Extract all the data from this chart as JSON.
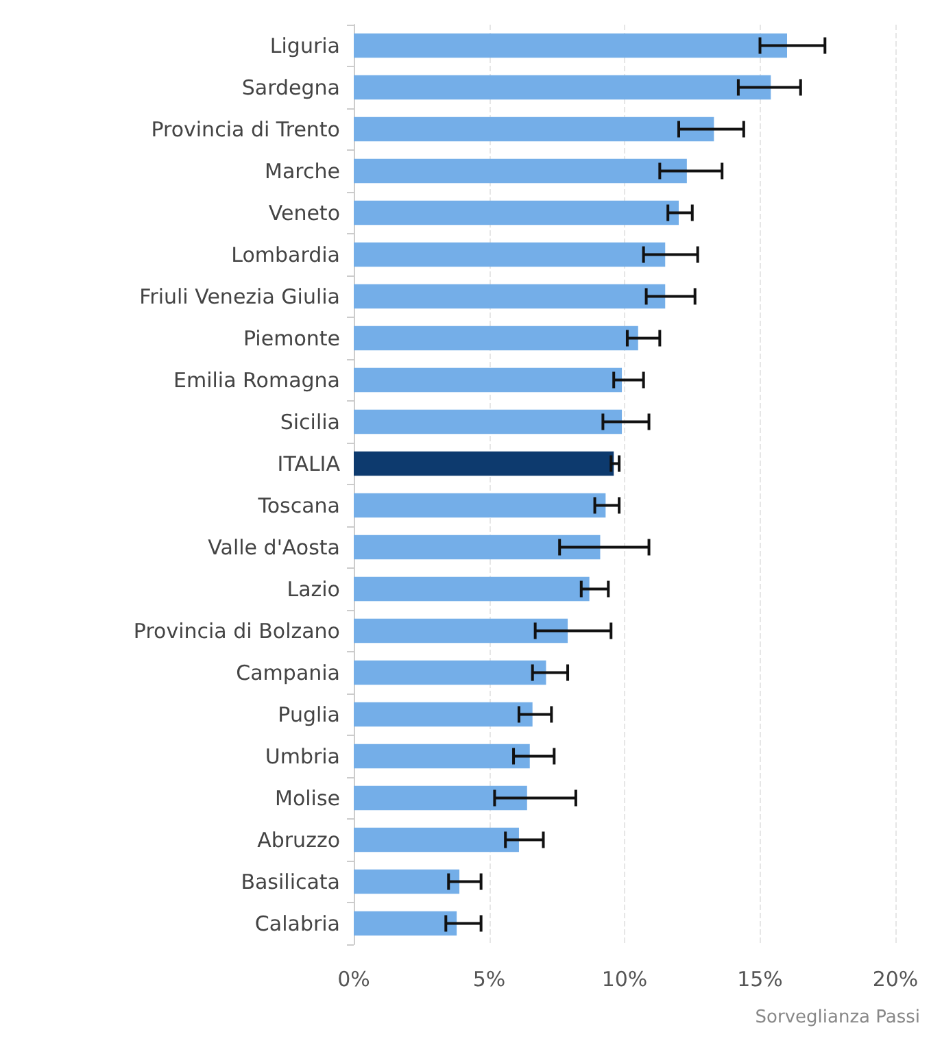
{
  "chart_data": {
    "type": "bar",
    "orientation": "horizontal",
    "categories": [
      "Liguria",
      "Sardegna",
      "Provincia di Trento",
      "Marche",
      "Veneto",
      "Lombardia",
      "Friuli Venezia Giulia",
      "Piemonte",
      "Emilia Romagna",
      "Sicilia",
      "ITALIA",
      "Toscana",
      "Valle d'Aosta",
      "Lazio",
      "Provincia di Bolzano",
      "Campania",
      "Puglia",
      "Umbria",
      "Molise",
      "Abruzzo",
      "Basilicata",
      "Calabria"
    ],
    "values": [
      16.0,
      15.4,
      13.3,
      12.3,
      12.0,
      11.5,
      11.5,
      10.5,
      9.9,
      9.9,
      9.6,
      9.3,
      9.1,
      8.7,
      7.9,
      7.1,
      6.6,
      6.5,
      6.4,
      6.1,
      3.9,
      3.8
    ],
    "errors": [
      [
        15.0,
        17.4
      ],
      [
        14.2,
        16.5
      ],
      [
        12.0,
        14.4
      ],
      [
        11.3,
        13.6
      ],
      [
        11.6,
        12.5
      ],
      [
        10.7,
        12.7
      ],
      [
        10.8,
        12.6
      ],
      [
        10.1,
        11.3
      ],
      [
        9.6,
        10.7
      ],
      [
        9.2,
        10.9
      ],
      [
        9.5,
        9.8
      ],
      [
        8.9,
        9.8
      ],
      [
        7.6,
        10.9
      ],
      [
        8.4,
        9.4
      ],
      [
        6.7,
        9.5
      ],
      [
        6.6,
        7.9
      ],
      [
        6.1,
        7.3
      ],
      [
        5.9,
        7.4
      ],
      [
        5.2,
        8.2
      ],
      [
        5.6,
        7.0
      ],
      [
        3.5,
        4.7
      ],
      [
        3.4,
        4.7
      ]
    ],
    "colors": [
      "#74aee8",
      "#74aee8",
      "#74aee8",
      "#74aee8",
      "#74aee8",
      "#74aee8",
      "#74aee8",
      "#74aee8",
      "#74aee8",
      "#74aee8",
      "#0d3a6e",
      "#74aee8",
      "#74aee8",
      "#74aee8",
      "#74aee8",
      "#74aee8",
      "#74aee8",
      "#74aee8",
      "#74aee8",
      "#74aee8",
      "#74aee8",
      "#74aee8"
    ],
    "xlim": [
      0,
      20
    ],
    "xticks": [
      {
        "value": 0,
        "label": "0%"
      },
      {
        "value": 5,
        "label": "5%"
      },
      {
        "value": 10,
        "label": "10%"
      },
      {
        "value": 15,
        "label": "15%"
      },
      {
        "value": 20,
        "label": "20%"
      }
    ],
    "grid": "x",
    "annotations": [
      "Sorveglianza Passi"
    ]
  }
}
